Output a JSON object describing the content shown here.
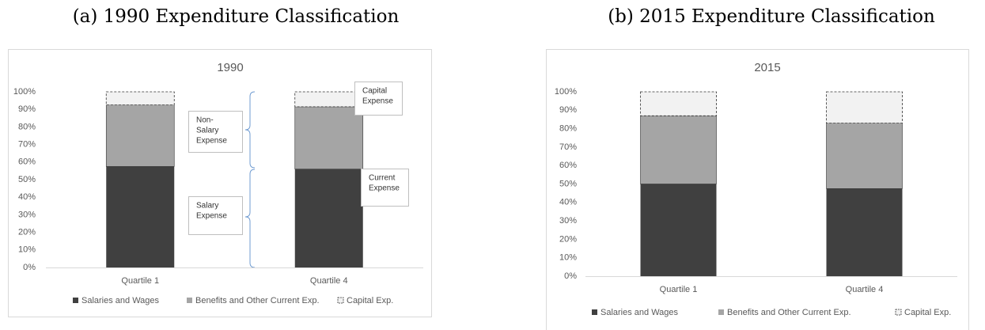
{
  "captions": [
    "(a) 1990 Expenditure Classification",
    "(b) 2015 Expenditure Classification"
  ],
  "chart_data": [
    {
      "type": "stacked_bar",
      "title": "1990",
      "categories": [
        "Quartile 1",
        "Quartile 4"
      ],
      "series": [
        {
          "name": "Salaries and Wages",
          "color": "#404040",
          "values": [
            57.5,
            56
          ]
        },
        {
          "name": "Benefits and Other Current Exp.",
          "color": "#a5a5a5",
          "values": [
            35,
            35.5
          ]
        },
        {
          "name": "Capital Exp.",
          "color": "#f2f2f2",
          "values": [
            7.5,
            8.5
          ]
        }
      ],
      "ylim": [
        0,
        100
      ],
      "yticks": [
        {
          "value": 0,
          "label": "0%"
        },
        {
          "value": 10,
          "label": "10%"
        },
        {
          "value": 20,
          "label": "20%"
        },
        {
          "value": 30,
          "label": "30%"
        },
        {
          "value": 40,
          "label": "40%"
        },
        {
          "value": 50,
          "label": "50%"
        },
        {
          "value": 60,
          "label": "60%"
        },
        {
          "value": 70,
          "label": "70%"
        },
        {
          "value": 80,
          "label": "80%"
        },
        {
          "value": 90,
          "label": "90%"
        },
        {
          "value": 100,
          "label": "100%"
        }
      ],
      "grid": false,
      "legend": "bottom",
      "annotations": [
        {
          "lines": [
            "Non-",
            "Salary",
            "Expense"
          ]
        },
        {
          "lines": [
            "Salary",
            "Expense"
          ]
        },
        {
          "lines": [
            "Capital",
            "Expense"
          ]
        },
        {
          "lines": [
            "Current",
            "Expense"
          ]
        }
      ]
    },
    {
      "type": "stacked_bar",
      "title": "2015",
      "categories": [
        "Quartile 1",
        "Quartile 4"
      ],
      "series": [
        {
          "name": "Salaries and Wages",
          "color": "#404040",
          "values": [
            50,
            47.5
          ]
        },
        {
          "name": "Benefits and Other Current Exp.",
          "color": "#a5a5a5",
          "values": [
            37,
            35.5
          ]
        },
        {
          "name": "Capital Exp.",
          "color": "#f2f2f2",
          "values": [
            13,
            17
          ]
        }
      ],
      "ylim": [
        0,
        100
      ],
      "yticks": [
        {
          "value": 0,
          "label": "0%"
        },
        {
          "value": 10,
          "label": "10%"
        },
        {
          "value": 20,
          "label": "20%"
        },
        {
          "value": 30,
          "label": "30%"
        },
        {
          "value": 40,
          "label": "40%"
        },
        {
          "value": 50,
          "label": "50%"
        },
        {
          "value": 60,
          "label": "60%"
        },
        {
          "value": 70,
          "label": "70%"
        },
        {
          "value": 80,
          "label": "80%"
        },
        {
          "value": 90,
          "label": "90%"
        },
        {
          "value": 100,
          "label": "100%"
        }
      ],
      "grid": false,
      "legend": "bottom"
    }
  ]
}
